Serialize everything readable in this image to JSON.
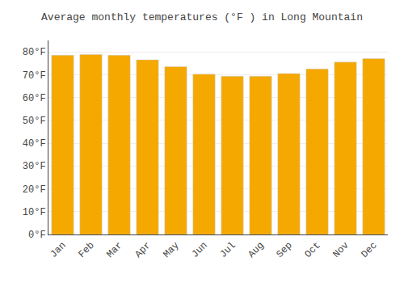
{
  "chart_data": {
    "type": "bar",
    "title": "Average monthly temperatures (°F ) in Long Mountain",
    "categories": [
      "Jan",
      "Feb",
      "Mar",
      "Apr",
      "May",
      "Jun",
      "Jul",
      "Aug",
      "Sep",
      "Oct",
      "Nov",
      "Dec"
    ],
    "values": [
      78.5,
      78.8,
      78.5,
      76.5,
      73.5,
      70.2,
      69.3,
      69.3,
      70.5,
      72.5,
      75.5,
      77.0
    ],
    "color": "#F5A800",
    "ylim": [
      0,
      85
    ],
    "yticks": [
      {
        "value": 0,
        "label": "0°F"
      },
      {
        "value": 10,
        "label": "10°F"
      },
      {
        "value": 20,
        "label": "20°F"
      },
      {
        "value": 30,
        "label": "30°F"
      },
      {
        "value": 40,
        "label": "40°F"
      },
      {
        "value": 50,
        "label": "50°F"
      },
      {
        "value": 60,
        "label": "60°F"
      },
      {
        "value": 70,
        "label": "70°F"
      },
      {
        "value": 80,
        "label": "80°F"
      }
    ],
    "grid": true
  }
}
